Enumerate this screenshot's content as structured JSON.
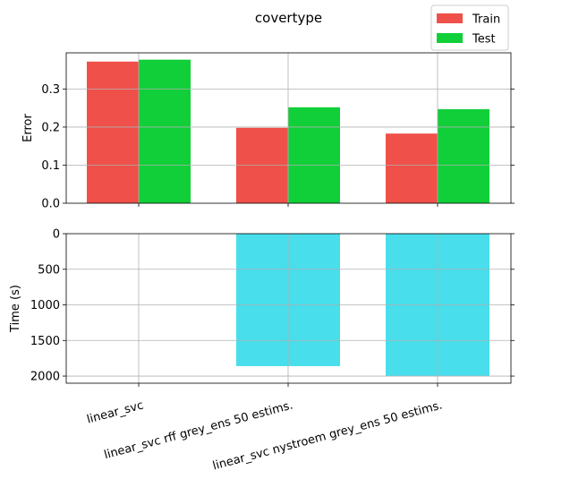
{
  "chart_data": [
    {
      "type": "bar",
      "title": "covertype",
      "ylabel": "Error",
      "xlabel": "",
      "categories": [
        "linear_svc",
        "linear_svc rff grey_ens 50 estims.",
        "linear_svc nystroem grey_ens 50 estims."
      ],
      "series": [
        {
          "name": "Train",
          "color": "#ef5049",
          "values": [
            0.372,
            0.198,
            0.183
          ]
        },
        {
          "name": "Test",
          "color": "#10cf38",
          "values": [
            0.377,
            0.252,
            0.247
          ]
        }
      ],
      "ylim": [
        0,
        0.395
      ],
      "yticks": [
        0.0,
        0.1,
        0.2,
        0.3
      ],
      "ytick_labels": [
        "0.0",
        "0.1",
        "0.2",
        "0.3"
      ],
      "grid": true,
      "legend": "top-right"
    },
    {
      "type": "bar",
      "ylabel": "Time (s)",
      "xlabel": "",
      "categories": [
        "linear_svc",
        "linear_svc rff grey_ens 50 estims.",
        "linear_svc nystroem grey_ens 50 estims."
      ],
      "series": [
        {
          "color": "#48deec",
          "values": [
            0,
            1860,
            2000
          ]
        }
      ],
      "ylim": [
        2100,
        0
      ],
      "inverted_y": true,
      "yticks": [
        0,
        500,
        1000,
        1500,
        2000
      ],
      "ytick_labels": [
        "0",
        "500",
        "1000",
        "1500",
        "2000"
      ],
      "grid": true
    }
  ]
}
